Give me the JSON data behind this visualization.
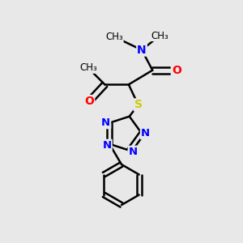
{
  "background_color": "#e8e8e8",
  "bond_color": "#000000",
  "bond_width": 1.8,
  "N_color": "#0000ff",
  "O_color": "#ff0000",
  "S_color": "#cccc00",
  "C_color": "#000000",
  "font_size": 10,
  "figsize": [
    3.0,
    3.0
  ],
  "dpi": 100,
  "xlim": [
    0,
    10
  ],
  "ylim": [
    0,
    10
  ]
}
